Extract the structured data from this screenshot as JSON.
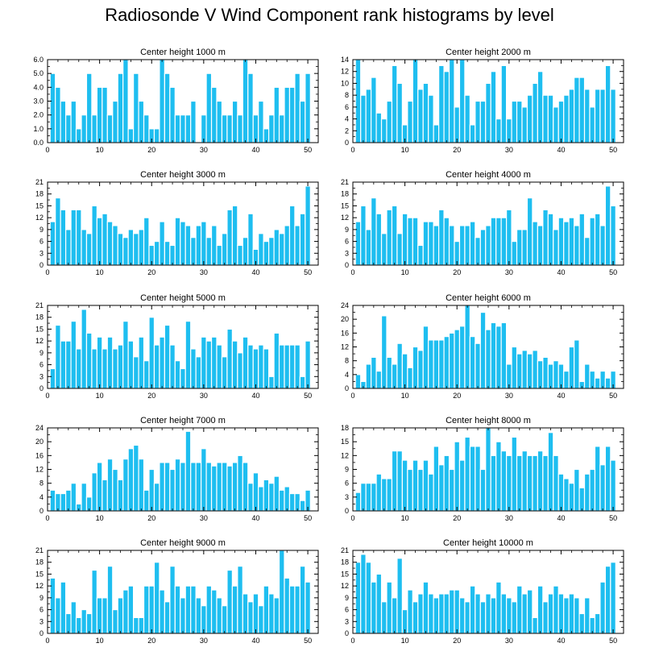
{
  "title": "Radiosonde V Wind Component rank histograms by level",
  "colors": {
    "bar": "#1EBEF0",
    "bar_edge": "#FFFFFF",
    "axis": "#000000"
  },
  "chart_data": [
    {
      "type": "bar",
      "title": "Center height 1000 m",
      "x_start": 1,
      "xlim": [
        0,
        52
      ],
      "xticks": [
        0,
        10,
        20,
        30,
        40,
        50
      ],
      "ylim": [
        0,
        6
      ],
      "yticks": [
        "0.0",
        "1.0",
        "2.0",
        "3.0",
        "4.0",
        "5.0",
        "6.0"
      ],
      "ytick_values": [
        0,
        1,
        2,
        3,
        4,
        5,
        6
      ],
      "values": [
        5,
        4,
        3,
        2,
        3,
        1,
        2,
        5,
        2,
        4,
        4,
        2,
        3,
        5,
        6,
        1,
        5,
        3,
        2,
        1,
        1,
        6,
        5,
        4,
        2,
        2,
        2,
        3,
        0,
        2,
        5,
        4,
        3,
        2,
        2,
        3,
        2,
        6,
        5,
        2,
        3,
        1,
        2,
        4,
        2,
        4,
        4,
        5,
        3,
        5
      ]
    },
    {
      "type": "bar",
      "title": "Center height 2000 m",
      "x_start": 1,
      "xlim": [
        0,
        52
      ],
      "xticks": [
        0,
        10,
        20,
        30,
        40,
        50
      ],
      "ylim": [
        0,
        14
      ],
      "yticks": [
        "0",
        "2",
        "4",
        "6",
        "8",
        "10",
        "12",
        "14"
      ],
      "ytick_values": [
        0,
        2,
        4,
        6,
        8,
        10,
        12,
        14
      ],
      "values": [
        14,
        8,
        9,
        11,
        5,
        4,
        7,
        13,
        10,
        3,
        7,
        14,
        9,
        10,
        8,
        3,
        13,
        12,
        14,
        6,
        14,
        8,
        3,
        7,
        7,
        10,
        12,
        4,
        13,
        4,
        7,
        7,
        6,
        8,
        10,
        12,
        8,
        8,
        6,
        7,
        8,
        9,
        11,
        11,
        9,
        6,
        9,
        9,
        13,
        9
      ]
    },
    {
      "type": "bar",
      "title": "Center height 3000 m",
      "x_start": 1,
      "xlim": [
        0,
        52
      ],
      "xticks": [
        0,
        10,
        20,
        30,
        40,
        50
      ],
      "ylim": [
        0,
        21
      ],
      "yticks": [
        "0",
        "3",
        "6",
        "9",
        "12",
        "15",
        "18",
        "21"
      ],
      "ytick_values": [
        0,
        3,
        6,
        9,
        12,
        15,
        18,
        21
      ],
      "values": [
        11,
        17,
        14,
        9,
        14,
        14,
        9,
        8,
        15,
        12,
        13,
        11,
        10,
        8,
        7,
        9,
        8,
        9,
        12,
        5,
        6,
        11,
        6,
        5,
        12,
        11,
        10,
        7,
        10,
        11,
        7,
        10,
        5,
        8,
        14,
        15,
        5,
        7,
        13,
        4,
        8,
        6,
        7,
        9,
        8,
        10,
        15,
        10,
        13,
        20
      ]
    },
    {
      "type": "bar",
      "title": "Center height 4000 m",
      "x_start": 1,
      "xlim": [
        0,
        52
      ],
      "xticks": [
        0,
        10,
        20,
        30,
        40,
        50
      ],
      "ylim": [
        0,
        21
      ],
      "yticks": [
        "0",
        "3",
        "6",
        "9",
        "12",
        "15",
        "18",
        "21"
      ],
      "ytick_values": [
        0,
        3,
        6,
        9,
        12,
        15,
        18,
        21
      ],
      "values": [
        11,
        15,
        9,
        17,
        13,
        8,
        14,
        15,
        8,
        13,
        12,
        12,
        5,
        11,
        11,
        10,
        14,
        12,
        10,
        6,
        10,
        10,
        11,
        7,
        9,
        10,
        12,
        12,
        12,
        14,
        6,
        9,
        9,
        17,
        11,
        10,
        14,
        13,
        9,
        12,
        11,
        12,
        10,
        13,
        7,
        12,
        13,
        10,
        20,
        15
      ]
    },
    {
      "type": "bar",
      "title": "Center height 5000 m",
      "x_start": 1,
      "xlim": [
        0,
        52
      ],
      "xticks": [
        0,
        10,
        20,
        30,
        40,
        50
      ],
      "ylim": [
        0,
        21
      ],
      "yticks": [
        "0",
        "3",
        "6",
        "9",
        "12",
        "15",
        "18",
        "21"
      ],
      "ytick_values": [
        0,
        3,
        6,
        9,
        12,
        15,
        18,
        21
      ],
      "values": [
        5,
        16,
        12,
        12,
        17,
        10,
        20,
        14,
        10,
        13,
        10,
        13,
        10,
        11,
        17,
        12,
        8,
        13,
        7,
        18,
        11,
        13,
        16,
        11,
        7,
        5,
        17,
        10,
        8,
        13,
        12,
        13,
        11,
        8,
        15,
        12,
        9,
        13,
        11,
        10,
        11,
        10,
        3,
        14,
        11,
        11,
        11,
        11,
        3,
        12
      ]
    },
    {
      "type": "bar",
      "title": "Center height 6000 m",
      "x_start": 1,
      "xlim": [
        0,
        52
      ],
      "xticks": [
        0,
        10,
        20,
        30,
        40,
        50
      ],
      "ylim": [
        0,
        24
      ],
      "yticks": [
        "0",
        "4",
        "8",
        "12",
        "16",
        "20",
        "24"
      ],
      "ytick_values": [
        0,
        4,
        8,
        12,
        16,
        20,
        24
      ],
      "values": [
        4,
        2,
        7,
        9,
        5,
        21,
        9,
        7,
        13,
        10,
        6,
        12,
        11,
        18,
        14,
        14,
        14,
        15,
        16,
        17,
        18,
        24,
        15,
        13,
        22,
        17,
        19,
        18,
        19,
        7,
        12,
        10,
        11,
        10,
        11,
        8,
        9,
        7,
        8,
        7,
        5,
        12,
        14,
        2,
        7,
        5,
        3,
        5,
        3,
        5
      ]
    },
    {
      "type": "bar",
      "title": "Center height 7000 m",
      "x_start": 1,
      "xlim": [
        0,
        52
      ],
      "xticks": [
        0,
        10,
        20,
        30,
        40,
        50
      ],
      "ylim": [
        0,
        24
      ],
      "yticks": [
        "0",
        "4",
        "8",
        "12",
        "16",
        "20",
        "24"
      ],
      "ytick_values": [
        0,
        4,
        8,
        12,
        16,
        20,
        24
      ],
      "values": [
        6,
        5,
        5,
        6,
        8,
        2,
        8,
        4,
        11,
        14,
        9,
        15,
        12,
        9,
        15,
        18,
        19,
        15,
        6,
        12,
        8,
        14,
        14,
        12,
        15,
        14,
        23,
        14,
        14,
        18,
        14,
        13,
        14,
        14,
        13,
        14,
        16,
        14,
        8,
        11,
        7,
        9,
        8,
        10,
        6,
        7,
        5,
        5,
        3,
        6
      ]
    },
    {
      "type": "bar",
      "title": "Center height 8000 m",
      "x_start": 1,
      "xlim": [
        0,
        52
      ],
      "xticks": [
        0,
        10,
        20,
        30,
        40,
        50
      ],
      "ylim": [
        0,
        18
      ],
      "yticks": [
        "0",
        "3",
        "6",
        "9",
        "12",
        "15",
        "18"
      ],
      "ytick_values": [
        0,
        3,
        6,
        9,
        12,
        15,
        18
      ],
      "values": [
        4,
        6,
        6,
        6,
        8,
        7,
        7,
        13,
        13,
        11,
        9,
        11,
        9,
        11,
        8,
        14,
        10,
        12,
        9,
        15,
        11,
        16,
        14,
        14,
        9,
        18,
        12,
        15,
        13,
        12,
        16,
        12,
        13,
        12,
        12,
        13,
        12,
        17,
        12,
        8,
        7,
        6,
        9,
        5,
        8,
        9,
        14,
        10,
        14,
        11
      ]
    },
    {
      "type": "bar",
      "title": "Center height 9000 m",
      "x_start": 1,
      "xlim": [
        0,
        52
      ],
      "xticks": [
        0,
        10,
        20,
        30,
        40,
        50
      ],
      "ylim": [
        0,
        21
      ],
      "yticks": [
        "0",
        "3",
        "6",
        "9",
        "12",
        "15",
        "18",
        "21"
      ],
      "ytick_values": [
        0,
        3,
        6,
        9,
        12,
        15,
        18,
        21
      ],
      "values": [
        14,
        9,
        13,
        5,
        8,
        4,
        6,
        5,
        16,
        9,
        9,
        17,
        6,
        9,
        11,
        12,
        4,
        4,
        12,
        12,
        18,
        11,
        8,
        17,
        12,
        9,
        12,
        12,
        9,
        7,
        12,
        11,
        9,
        7,
        16,
        12,
        17,
        10,
        8,
        10,
        7,
        12,
        10,
        9,
        21,
        14,
        12,
        12,
        17,
        13
      ]
    },
    {
      "type": "bar",
      "title": "Center height 10000 m",
      "x_start": 1,
      "xlim": [
        0,
        52
      ],
      "xticks": [
        0,
        10,
        20,
        30,
        40,
        50
      ],
      "ylim": [
        0,
        21
      ],
      "yticks": [
        "0",
        "3",
        "6",
        "9",
        "12",
        "15",
        "18",
        "21"
      ],
      "ytick_values": [
        0,
        3,
        6,
        9,
        12,
        15,
        18,
        21
      ],
      "values": [
        18,
        20,
        18,
        13,
        15,
        8,
        13,
        9,
        19,
        6,
        11,
        8,
        10,
        13,
        10,
        9,
        10,
        10,
        11,
        11,
        9,
        8,
        12,
        10,
        8,
        10,
        9,
        13,
        10,
        9,
        8,
        12,
        10,
        11,
        4,
        12,
        8,
        10,
        12,
        10,
        9,
        10,
        9,
        5,
        9,
        4,
        5,
        13,
        17,
        18
      ]
    }
  ]
}
